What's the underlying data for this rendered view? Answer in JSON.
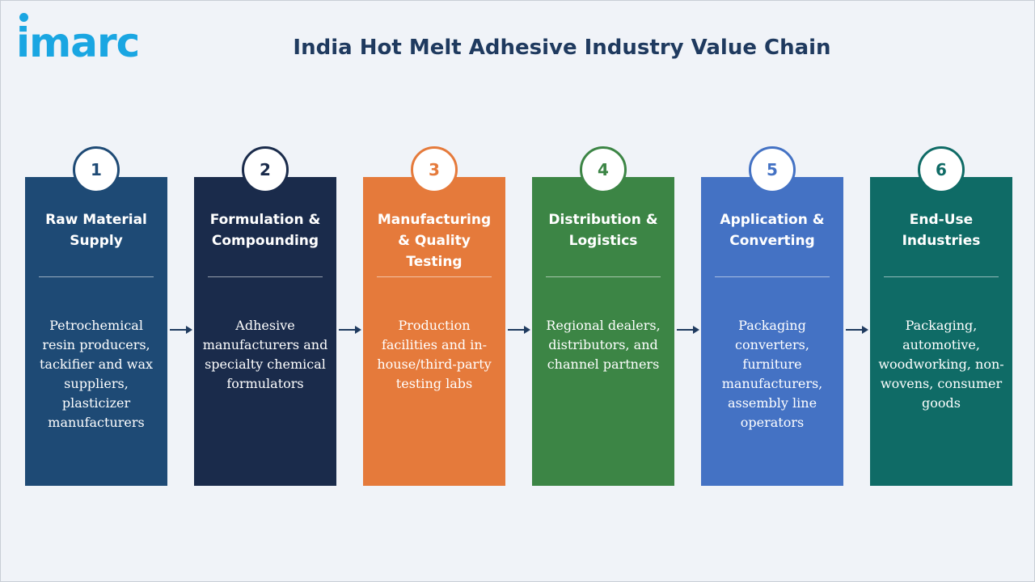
{
  "logo": {
    "text": "imarc",
    "color": "#1aa6e2"
  },
  "title": {
    "text": "India Hot Melt Adhesive Industry Value Chain",
    "color": "#1f3a5f"
  },
  "colors": {
    "background": "#f0f3f8",
    "arrow": "#1f3a5f"
  },
  "steps": [
    {
      "number": "1",
      "title": "Raw Material Supply",
      "description": "Petrochemical resin producers, tackifier and wax suppliers, plasticizer manufacturers",
      "color": "#1e4a75"
    },
    {
      "number": "2",
      "title": "Formulation & Compounding",
      "description": "Adhesive manufacturers and specialty chemical formulators",
      "color": "#1a2b4b"
    },
    {
      "number": "3",
      "title": "Manufacturing & Quality Testing",
      "description": "Production facilities and in-house/third-party testing labs",
      "color": "#e57a3b"
    },
    {
      "number": "4",
      "title": "Distribution & Logistics",
      "description": "Regional dealers, distributors, and channel partners",
      "color": "#3c8545"
    },
    {
      "number": "5",
      "title": "Application & Converting",
      "description": "Packaging converters, furniture manufacturers, assembly line operators",
      "color": "#4472c4"
    },
    {
      "number": "6",
      "title": "End-Use Industries",
      "description": "Packaging, automotive, woodworking, non-wovens, consumer goods",
      "color": "#0f6b66"
    }
  ]
}
